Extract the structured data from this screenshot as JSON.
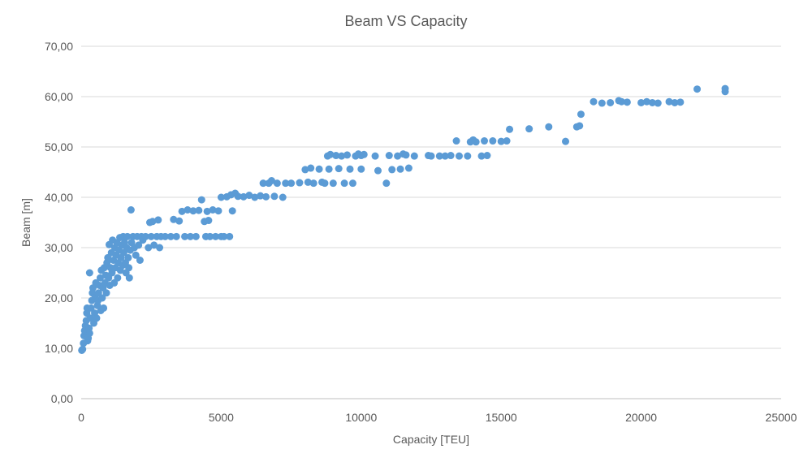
{
  "chart_data": {
    "type": "scatter",
    "title": "Beam VS Capacity",
    "xlabel": "Capacity [TEU]",
    "ylabel": "Beam [m]",
    "xlim": [
      0,
      25000
    ],
    "ylim": [
      0,
      70
    ],
    "x_ticks": [
      0,
      5000,
      10000,
      15000,
      20000,
      25000
    ],
    "x_tick_labels": [
      "0",
      "5000",
      "10000",
      "15000",
      "20000",
      "25000"
    ],
    "y_ticks": [
      0,
      10,
      20,
      30,
      40,
      50,
      60,
      70
    ],
    "y_tick_labels": [
      "0,00",
      "10,00",
      "20,00",
      "30,00",
      "40,00",
      "50,00",
      "60,00",
      "70,00"
    ],
    "grid": "horizontal",
    "legend": "none",
    "marker_color": "#5b9bd5",
    "series": [
      {
        "points": [
          [
            20,
            9.6
          ],
          [
            50,
            9.8
          ],
          [
            80,
            11
          ],
          [
            100,
            12.5
          ],
          [
            120,
            13.5
          ],
          [
            150,
            14.5
          ],
          [
            180,
            15.5
          ],
          [
            200,
            17
          ],
          [
            210,
            18
          ],
          [
            230,
            11.5
          ],
          [
            250,
            12
          ],
          [
            280,
            14
          ],
          [
            300,
            25
          ],
          [
            300,
            13
          ],
          [
            320,
            16
          ],
          [
            350,
            18
          ],
          [
            380,
            19.5
          ],
          [
            400,
            21
          ],
          [
            420,
            22
          ],
          [
            450,
            15
          ],
          [
            480,
            17
          ],
          [
            500,
            20
          ],
          [
            520,
            23
          ],
          [
            550,
            16
          ],
          [
            580,
            18.5
          ],
          [
            600,
            19.5
          ],
          [
            620,
            21
          ],
          [
            650,
            22.5
          ],
          [
            680,
            24
          ],
          [
            700,
            17.5
          ],
          [
            720,
            25.5
          ],
          [
            750,
            20
          ],
          [
            780,
            22
          ],
          [
            800,
            18
          ],
          [
            820,
            26
          ],
          [
            850,
            23
          ],
          [
            880,
            24.5
          ],
          [
            900,
            21
          ],
          [
            920,
            27
          ],
          [
            950,
            28
          ],
          [
            980,
            24
          ],
          [
            1000,
            30.6
          ],
          [
            1020,
            22.5
          ],
          [
            1050,
            26
          ],
          [
            1080,
            29
          ],
          [
            1100,
            25
          ],
          [
            1120,
            31.5
          ],
          [
            1150,
            27.5
          ],
          [
            1180,
            23
          ],
          [
            1200,
            30
          ],
          [
            1220,
            26
          ],
          [
            1250,
            28.5
          ],
          [
            1280,
            31
          ],
          [
            1300,
            24
          ],
          [
            1320,
            27
          ],
          [
            1350,
            29.5
          ],
          [
            1380,
            32
          ],
          [
            1400,
            25.5
          ],
          [
            1420,
            28
          ],
          [
            1450,
            30.5
          ],
          [
            1480,
            26.5
          ],
          [
            1500,
            32.2
          ],
          [
            1520,
            29
          ],
          [
            1550,
            31
          ],
          [
            1580,
            27
          ],
          [
            1600,
            25
          ],
          [
            1620,
            30
          ],
          [
            1650,
            32.2
          ],
          [
            1680,
            28
          ],
          [
            1700,
            26
          ],
          [
            1720,
            24
          ],
          [
            1750,
            29.5
          ],
          [
            1780,
            37.5
          ],
          [
            1800,
            31
          ],
          [
            1850,
            32.2
          ],
          [
            1900,
            30
          ],
          [
            1950,
            28.5
          ],
          [
            2000,
            32.2
          ],
          [
            2050,
            30.5
          ],
          [
            2100,
            27.5
          ],
          [
            2150,
            32.2
          ],
          [
            2200,
            31.5
          ],
          [
            2300,
            32.2
          ],
          [
            2400,
            30
          ],
          [
            2450,
            35
          ],
          [
            2500,
            32.2
          ],
          [
            2550,
            35.2
          ],
          [
            2600,
            30.5
          ],
          [
            2700,
            32.2
          ],
          [
            2750,
            35.5
          ],
          [
            2800,
            30
          ],
          [
            2850,
            32.2
          ],
          [
            3000,
            32.2
          ],
          [
            3200,
            32.2
          ],
          [
            3300,
            35.6
          ],
          [
            3400,
            32.2
          ],
          [
            3500,
            35.3
          ],
          [
            3600,
            37.2
          ],
          [
            3700,
            32.2
          ],
          [
            3800,
            37.5
          ],
          [
            3900,
            32.2
          ],
          [
            4000,
            37.3
          ],
          [
            4100,
            32.2
          ],
          [
            4200,
            37.4
          ],
          [
            4300,
            39.5
          ],
          [
            4400,
            35.2
          ],
          [
            4450,
            32.2
          ],
          [
            4500,
            37.2
          ],
          [
            4550,
            35.4
          ],
          [
            4600,
            32.2
          ],
          [
            4700,
            37.5
          ],
          [
            4800,
            32.2
          ],
          [
            4900,
            37.3
          ],
          [
            5000,
            32.2
          ],
          [
            5000,
            40
          ],
          [
            5100,
            32.2
          ],
          [
            5200,
            40.1
          ],
          [
            5300,
            32.2
          ],
          [
            5350,
            40.5
          ],
          [
            5400,
            37.3
          ],
          [
            5500,
            40.8
          ],
          [
            5600,
            40.2
          ],
          [
            5800,
            40.1
          ],
          [
            6000,
            40.4
          ],
          [
            6200,
            40
          ],
          [
            6400,
            40.3
          ],
          [
            6500,
            42.8
          ],
          [
            6600,
            40.1
          ],
          [
            6700,
            42.8
          ],
          [
            6800,
            43.3
          ],
          [
            6900,
            40.2
          ],
          [
            7000,
            42.8
          ],
          [
            7200,
            40
          ],
          [
            7300,
            42.8
          ],
          [
            7500,
            42.8
          ],
          [
            7800,
            42.9
          ],
          [
            8000,
            45.5
          ],
          [
            8100,
            43
          ],
          [
            8200,
            45.8
          ],
          [
            8300,
            42.8
          ],
          [
            8500,
            45.6
          ],
          [
            8600,
            43
          ],
          [
            8700,
            42.8
          ],
          [
            8800,
            48.2
          ],
          [
            8850,
            45.6
          ],
          [
            8900,
            48.5
          ],
          [
            9000,
            42.8
          ],
          [
            9100,
            48.3
          ],
          [
            9200,
            45.7
          ],
          [
            9300,
            48.2
          ],
          [
            9400,
            42.8
          ],
          [
            9500,
            48.4
          ],
          [
            9600,
            45.6
          ],
          [
            9700,
            42.8
          ],
          [
            9800,
            48.2
          ],
          [
            9900,
            48.6
          ],
          [
            10000,
            45.6
          ],
          [
            10000,
            48.3
          ],
          [
            10100,
            48.5
          ],
          [
            10500,
            48.2
          ],
          [
            10600,
            45.3
          ],
          [
            10900,
            42.8
          ],
          [
            11000,
            48.3
          ],
          [
            11100,
            45.5
          ],
          [
            11300,
            48.2
          ],
          [
            11400,
            45.6
          ],
          [
            11500,
            48.6
          ],
          [
            11600,
            48.4
          ],
          [
            11700,
            45.8
          ],
          [
            11900,
            48.2
          ],
          [
            12400,
            48.3
          ],
          [
            12500,
            48.2
          ],
          [
            12800,
            48.2
          ],
          [
            13000,
            48.2
          ],
          [
            13200,
            48.3
          ],
          [
            13400,
            51.2
          ],
          [
            13500,
            48.2
          ],
          [
            13800,
            48.2
          ],
          [
            13900,
            51
          ],
          [
            14000,
            51.4
          ],
          [
            14100,
            51
          ],
          [
            14300,
            48.2
          ],
          [
            14400,
            51.2
          ],
          [
            14500,
            48.3
          ],
          [
            14700,
            51.2
          ],
          [
            15000,
            51.1
          ],
          [
            15200,
            51.2
          ],
          [
            15300,
            53.5
          ],
          [
            16000,
            53.6
          ],
          [
            16700,
            54
          ],
          [
            17300,
            51.1
          ],
          [
            17700,
            54
          ],
          [
            17800,
            54.2
          ],
          [
            17850,
            56.5
          ],
          [
            18300,
            59
          ],
          [
            18600,
            58.7
          ],
          [
            18900,
            58.8
          ],
          [
            19200,
            59.2
          ],
          [
            19300,
            59
          ],
          [
            19500,
            58.9
          ],
          [
            20000,
            58.8
          ],
          [
            20200,
            59
          ],
          [
            20400,
            58.8
          ],
          [
            20600,
            58.7
          ],
          [
            21000,
            59
          ],
          [
            21200,
            58.8
          ],
          [
            21400,
            58.9
          ],
          [
            22000,
            61.5
          ],
          [
            23000,
            61
          ],
          [
            23000,
            61.6
          ]
        ]
      }
    ]
  }
}
